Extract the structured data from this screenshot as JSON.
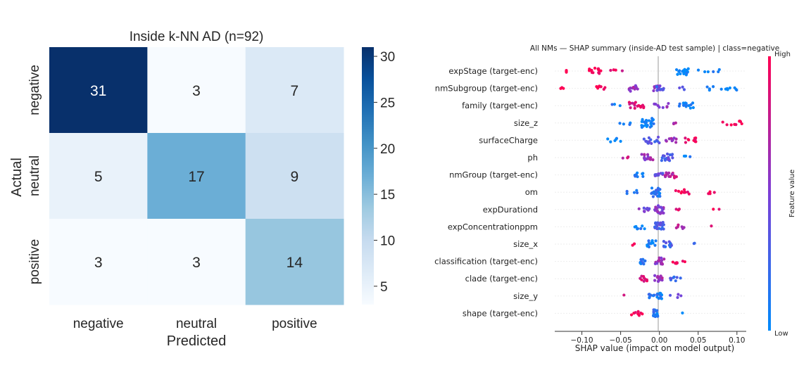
{
  "chart_data": [
    {
      "type": "heatmap",
      "title": "Inside k-NN AD (n=92)",
      "xlabel": "Predicted",
      "ylabel": "Actual",
      "x_categories": [
        "negative",
        "neutral",
        "positive"
      ],
      "y_categories": [
        "negative",
        "neutral",
        "positive"
      ],
      "values": [
        [
          31,
          3,
          7
        ],
        [
          5,
          17,
          9
        ],
        [
          3,
          3,
          14
        ]
      ],
      "colorbar": {
        "range": [
          3,
          31
        ],
        "ticks": [
          5,
          10,
          15,
          20,
          25,
          30
        ],
        "colormap": "Blues"
      }
    },
    {
      "type": "scatter",
      "title": "All NMs — SHAP summary (inside-AD test sample) | class=negative",
      "xlabel": "SHAP value (impact on model output)",
      "x_ticks": [
        "−0.10",
        "−0.05",
        "0.00",
        "0.05",
        "0.10"
      ],
      "x_tick_values": [
        -0.1,
        -0.05,
        0.0,
        0.05,
        0.1
      ],
      "xlim": [
        -0.135,
        0.112
      ],
      "features": [
        "expStage (target-enc)",
        "nmSubgroup (target-enc)",
        "family (target-enc)",
        "size_z",
        "surfaceCharge",
        "ph",
        "nmGroup (target-enc)",
        "om",
        "expDurationd",
        "expConcentrationppm",
        "size_x",
        "classification (target-enc)",
        "clade (target-enc)",
        "size_y",
        "shape (target-enc)"
      ],
      "colorbar": {
        "label": "Feature value",
        "high": "High",
        "low": "Low",
        "low_color": "#008bfb",
        "high_color": "#ff0052"
      },
      "clusters": [
        [
          [
            -0.12,
            0.0,
            3,
            1
          ],
          [
            -0.085,
            0.01,
            16,
            1
          ],
          [
            -0.055,
            0.008,
            4,
            0.9
          ],
          [
            0.03,
            0.008,
            18,
            0
          ],
          [
            0.07,
            0.02,
            6,
            0.05
          ]
        ],
        [
          [
            -0.125,
            0.003,
            3,
            1
          ],
          [
            -0.075,
            0.008,
            8,
            0.95
          ],
          [
            -0.035,
            0.008,
            12,
            0.6
          ],
          [
            -0.005,
            0.006,
            10,
            0.5
          ],
          [
            0.0,
            0.006,
            8,
            0.3
          ],
          [
            0.03,
            0.008,
            3,
            0.4
          ],
          [
            0.08,
            0.02,
            12,
            0.05
          ]
        ],
        [
          [
            -0.055,
            0.006,
            3,
            0.1
          ],
          [
            -0.03,
            0.01,
            16,
            0.85
          ],
          [
            0.005,
            0.012,
            8,
            0.6
          ],
          [
            0.035,
            0.01,
            14,
            0.05
          ]
        ],
        [
          [
            -0.045,
            0.008,
            4,
            0.05
          ],
          [
            -0.015,
            0.008,
            24,
            0.08
          ],
          [
            0.02,
            0.004,
            3,
            0.7
          ],
          [
            0.095,
            0.014,
            9,
            1
          ]
        ],
        [
          [
            -0.06,
            0.01,
            6,
            0.05
          ],
          [
            -0.01,
            0.01,
            14,
            0.3
          ],
          [
            0.015,
            0.008,
            10,
            0.6
          ],
          [
            0.04,
            0.008,
            10,
            0.95
          ]
        ],
        [
          [
            -0.045,
            0.008,
            3,
            0.75
          ],
          [
            -0.015,
            0.008,
            14,
            0.6
          ],
          [
            0.01,
            0.008,
            18,
            0.35
          ],
          [
            0.04,
            0.008,
            3,
            0.1
          ]
        ],
        [
          [
            -0.025,
            0.008,
            8,
            0.1
          ],
          [
            0.0,
            0.006,
            10,
            0.4
          ],
          [
            0.015,
            0.008,
            14,
            0.75
          ]
        ],
        [
          [
            -0.035,
            0.008,
            5,
            0.2
          ],
          [
            -0.005,
            0.006,
            22,
            0.15
          ],
          [
            0.03,
            0.01,
            10,
            0.95
          ],
          [
            0.07,
            0.008,
            4,
            0.95
          ]
        ],
        [
          [
            -0.02,
            0.008,
            10,
            0.5
          ],
          [
            0.0,
            0.006,
            22,
            0.55
          ],
          [
            0.025,
            0.004,
            3,
            0.9
          ],
          [
            0.07,
            0.012,
            2,
            0.9
          ]
        ],
        [
          [
            -0.025,
            0.008,
            8,
            0.1
          ],
          [
            0.0,
            0.006,
            22,
            0.3
          ],
          [
            0.025,
            0.008,
            6,
            0.7
          ],
          [
            0.065,
            0.003,
            1,
            0.95
          ]
        ],
        [
          [
            -0.035,
            0.004,
            2,
            0.9
          ],
          [
            -0.01,
            0.006,
            16,
            0.1
          ],
          [
            0.01,
            0.006,
            12,
            0.25
          ],
          [
            0.045,
            0.004,
            2,
            0.2
          ]
        ],
        [
          [
            -0.02,
            0.006,
            10,
            0.15
          ],
          [
            0.0,
            0.006,
            16,
            0.6
          ],
          [
            0.025,
            0.008,
            8,
            0.95
          ]
        ],
        [
          [
            -0.02,
            0.006,
            10,
            0.85
          ],
          [
            0.0,
            0.006,
            14,
            0.6
          ],
          [
            0.02,
            0.008,
            8,
            0.25
          ]
        ],
        [
          [
            -0.045,
            0.002,
            1,
            0.95
          ],
          [
            -0.01,
            0.004,
            8,
            0.15
          ],
          [
            0.0,
            0.004,
            12,
            0.1
          ],
          [
            0.02,
            0.008,
            4,
            0.4
          ]
        ],
        [
          [
            -0.03,
            0.008,
            8,
            1
          ],
          [
            -0.005,
            0.003,
            16,
            0.15
          ],
          [
            0.03,
            0.002,
            1,
            0.05
          ]
        ]
      ]
    }
  ]
}
